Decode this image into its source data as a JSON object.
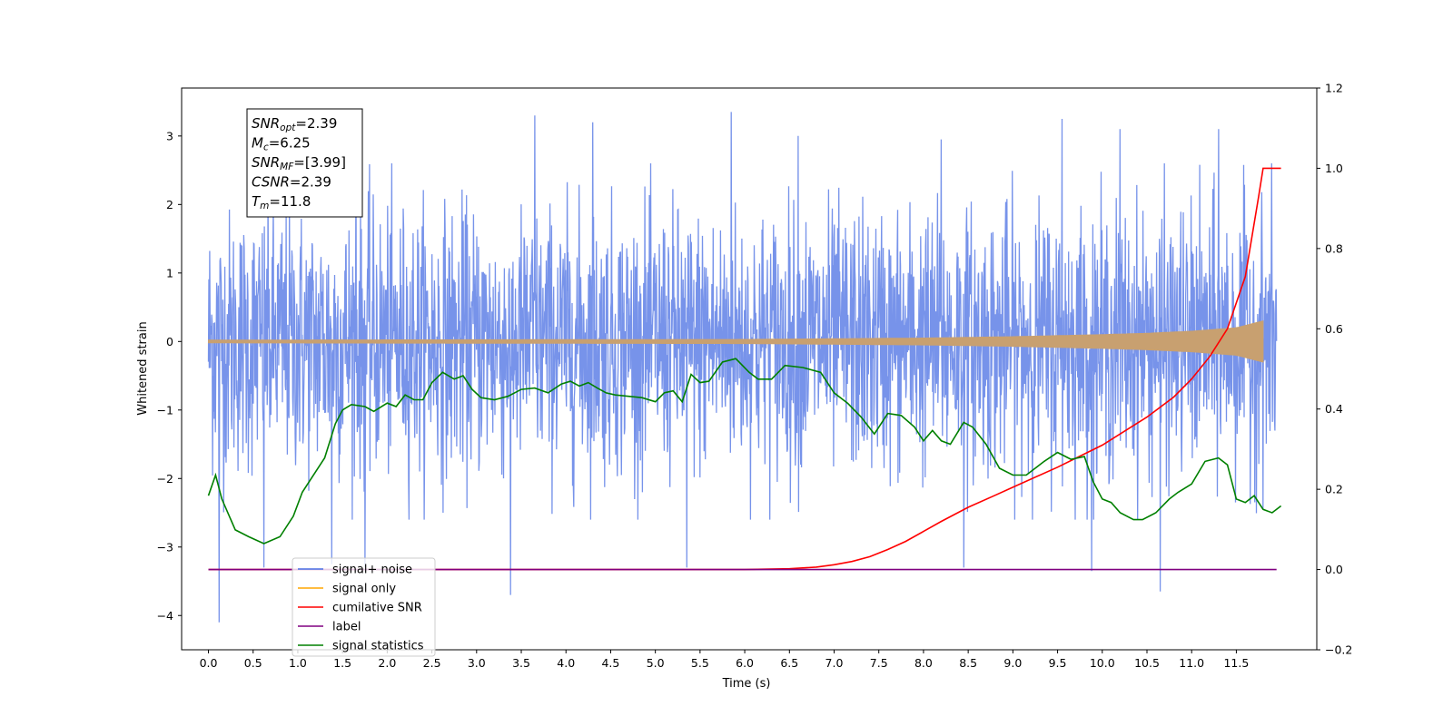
{
  "chart_data": {
    "type": "line",
    "xlabel": "Time (s)",
    "ylabel": "Whitened strain",
    "xlim": [
      -0.3,
      12.4
    ],
    "ylim": [
      -4.5,
      3.7
    ],
    "y2lim": [
      -0.2,
      1.2
    ],
    "grid": false,
    "legend_position": "lower-left",
    "x_ticks": [
      0.0,
      0.5,
      1.0,
      1.5,
      2.0,
      2.5,
      3.0,
      3.5,
      4.0,
      4.5,
      5.0,
      5.5,
      6.0,
      6.5,
      7.0,
      7.5,
      8.0,
      8.5,
      9.0,
      9.5,
      10.0,
      10.5,
      11.0,
      11.5
    ],
    "x_tick_labels": [
      "0.0",
      "0.5",
      "1.0",
      "1.5",
      "2.0",
      "2.5",
      "3.0",
      "3.5",
      "4.0",
      "4.5",
      "5.0",
      "5.5",
      "6.0",
      "6.5",
      "7.0",
      "7.5",
      "8.0",
      "8.5",
      "9.0",
      "9.5",
      "10.0",
      "10.5",
      "11.0",
      "11.5"
    ],
    "y_ticks": [
      3,
      2,
      1,
      0,
      -1,
      -2,
      -3,
      -4
    ],
    "y_tick_labels": [
      "3",
      "2",
      "1",
      "0",
      "−1",
      "−2",
      "−3",
      "−4"
    ],
    "y2_ticks": [
      1.2,
      1.0,
      0.8,
      0.6,
      0.4,
      0.2,
      0.0,
      -0.2
    ],
    "y2_tick_labels": [
      "1.2",
      "1.0",
      "0.8",
      "0.6",
      "0.4",
      "0.2",
      "0.0",
      "−0.2"
    ],
    "annotation": [
      {
        "base": "SNR",
        "sub": "opt",
        "value": "=2.39"
      },
      {
        "base": "M",
        "sub": "c",
        "value": "=6.25"
      },
      {
        "base": "SNR",
        "sub": "MF",
        "value": "=[3.99]"
      },
      {
        "base": "CSNR",
        "sub": "",
        "value": "=2.39"
      },
      {
        "base": "T",
        "sub": "m",
        "value": "=11.8"
      }
    ],
    "legend": [
      {
        "label": "signal+ noise",
        "color": "#4a6fe3"
      },
      {
        "label": "signal only",
        "color": "#ffa500"
      },
      {
        "label": "cumilative SNR",
        "color": "#ff0000"
      },
      {
        "label": "label",
        "color": "#800080"
      },
      {
        "label": "signal statistics",
        "color": "#008000"
      }
    ],
    "series": [
      {
        "name": "signal+ noise",
        "axis": "left",
        "color": "#4a6fe3",
        "x_range": [
          0.0,
          11.95
        ],
        "envelope": [
          -1.6,
          1.6
        ],
        "spikes": [
          {
            "x": 0.12,
            "y": -4.1
          },
          {
            "x": 0.62,
            "y": -3.3
          },
          {
            "x": 1.38,
            "y": -3.25
          },
          {
            "x": 1.75,
            "y": -3.3
          },
          {
            "x": 3.38,
            "y": -3.7
          },
          {
            "x": 5.35,
            "y": -3.3
          },
          {
            "x": 8.45,
            "y": -3.3
          },
          {
            "x": 9.88,
            "y": -3.35
          },
          {
            "x": 10.65,
            "y": -3.65
          },
          {
            "x": 5.85,
            "y": 3.35
          },
          {
            "x": 3.65,
            "y": 3.3
          },
          {
            "x": 9.55,
            "y": 3.25
          },
          {
            "x": 4.3,
            "y": 3.2
          },
          {
            "x": 10.2,
            "y": 3.1
          },
          {
            "x": 11.3,
            "y": 3.1
          },
          {
            "x": 6.6,
            "y": 3.0
          },
          {
            "x": 1.65,
            "y": 2.95
          },
          {
            "x": 8.2,
            "y": 2.95
          }
        ]
      },
      {
        "name": "signal only",
        "axis": "left",
        "color": "#c8a070",
        "x_range": [
          0.0,
          11.8
        ],
        "amplitude": [
          [
            0.0,
            0.02
          ],
          [
            6.0,
            0.03
          ],
          [
            8.0,
            0.05
          ],
          [
            9.0,
            0.07
          ],
          [
            10.0,
            0.1
          ],
          [
            10.5,
            0.12
          ],
          [
            11.0,
            0.15
          ],
          [
            11.5,
            0.2
          ],
          [
            11.8,
            0.3
          ]
        ]
      },
      {
        "name": "cumilative SNR",
        "axis": "right",
        "color": "#ff0000",
        "x": [
          0.0,
          6.0,
          6.5,
          6.8,
          7.0,
          7.2,
          7.4,
          7.6,
          7.8,
          8.0,
          8.2,
          8.5,
          8.8,
          9.0,
          9.5,
          10.0,
          10.5,
          10.8,
          11.0,
          11.2,
          11.4,
          11.6,
          11.75,
          11.8,
          11.85,
          12.0
        ],
        "y": [
          0.0,
          0.0,
          0.002,
          0.006,
          0.012,
          0.02,
          0.032,
          0.05,
          0.07,
          0.095,
          0.12,
          0.155,
          0.185,
          0.205,
          0.255,
          0.31,
          0.38,
          0.43,
          0.475,
          0.53,
          0.6,
          0.73,
          0.93,
          1.0,
          1.0,
          1.0
        ]
      },
      {
        "name": "label",
        "axis": "right",
        "color": "#800080",
        "x": [
          0.0,
          11.95
        ],
        "y": [
          0.0,
          0.0
        ]
      },
      {
        "name": "signal statistics",
        "axis": "left",
        "color": "#008000",
        "x": [
          0.0,
          0.08,
          0.15,
          0.3,
          0.45,
          0.62,
          0.8,
          0.95,
          1.05,
          1.15,
          1.3,
          1.42,
          1.5,
          1.6,
          1.75,
          1.85,
          2.0,
          2.1,
          2.2,
          2.3,
          2.4,
          2.5,
          2.62,
          2.75,
          2.85,
          2.95,
          3.05,
          3.2,
          3.35,
          3.5,
          3.65,
          3.8,
          3.95,
          4.05,
          4.15,
          4.25,
          4.35,
          4.45,
          4.55,
          4.7,
          4.85,
          5.0,
          5.1,
          5.2,
          5.3,
          5.4,
          5.5,
          5.6,
          5.75,
          5.9,
          6.05,
          6.15,
          6.3,
          6.45,
          6.65,
          6.85,
          7.0,
          7.15,
          7.3,
          7.45,
          7.6,
          7.75,
          7.9,
          8.0,
          8.1,
          8.2,
          8.3,
          8.45,
          8.55,
          8.7,
          8.85,
          9.0,
          9.15,
          9.35,
          9.5,
          9.65,
          9.8,
          9.9,
          10.0,
          10.1,
          10.2,
          10.35,
          10.45,
          10.6,
          10.75,
          10.85,
          11.0,
          11.15,
          11.3,
          11.4,
          11.5,
          11.6,
          11.7,
          11.8,
          11.9,
          12.0
        ],
        "y": [
          -2.25,
          -1.95,
          -2.3,
          -2.75,
          -2.85,
          -2.95,
          -2.85,
          -2.55,
          -2.2,
          -2.0,
          -1.7,
          -1.2,
          -1.0,
          -0.92,
          -0.95,
          -1.02,
          -0.9,
          -0.95,
          -0.78,
          -0.85,
          -0.85,
          -0.6,
          -0.45,
          -0.55,
          -0.5,
          -0.7,
          -0.82,
          -0.85,
          -0.8,
          -0.7,
          -0.68,
          -0.75,
          -0.62,
          -0.58,
          -0.65,
          -0.6,
          -0.68,
          -0.75,
          -0.78,
          -0.8,
          -0.82,
          -0.88,
          -0.75,
          -0.72,
          -0.88,
          -0.48,
          -0.6,
          -0.58,
          -0.3,
          -0.25,
          -0.45,
          -0.55,
          -0.55,
          -0.35,
          -0.38,
          -0.45,
          -0.75,
          -0.9,
          -1.1,
          -1.35,
          -1.05,
          -1.08,
          -1.25,
          -1.45,
          -1.3,
          -1.45,
          -1.5,
          -1.18,
          -1.25,
          -1.5,
          -1.85,
          -1.95,
          -1.95,
          -1.75,
          -1.62,
          -1.72,
          -1.68,
          -2.05,
          -2.3,
          -2.35,
          -2.5,
          -2.6,
          -2.6,
          -2.5,
          -2.3,
          -2.2,
          -2.08,
          -1.75,
          -1.7,
          -1.8,
          -2.3,
          -2.35,
          -2.25,
          -2.45,
          -2.5,
          -2.4
        ]
      }
    ]
  }
}
